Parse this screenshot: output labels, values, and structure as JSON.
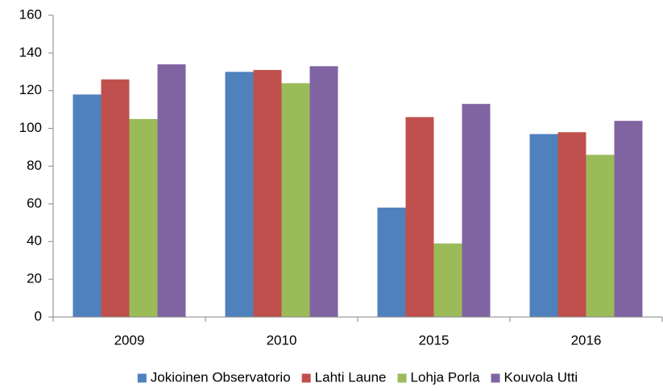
{
  "chart_data": {
    "type": "bar",
    "categories": [
      "2009",
      "2010",
      "2015",
      "2016"
    ],
    "series": [
      {
        "name": "Jokioinen Observatorio",
        "color": "#4f81bd",
        "values": [
          118,
          130,
          58,
          97
        ]
      },
      {
        "name": "Lahti Laune",
        "color": "#c0504d",
        "values": [
          126,
          131,
          106,
          98
        ]
      },
      {
        "name": "Lohja Porla",
        "color": "#9bbb59",
        "values": [
          105,
          124,
          39,
          86
        ]
      },
      {
        "name": "Kouvola Utti",
        "color": "#8064a2",
        "values": [
          134,
          133,
          113,
          104
        ]
      }
    ],
    "ylim": [
      0,
      160
    ],
    "yticks": [
      0,
      20,
      40,
      60,
      80,
      100,
      120,
      140,
      160
    ],
    "grid": false,
    "legend": "bottom"
  }
}
